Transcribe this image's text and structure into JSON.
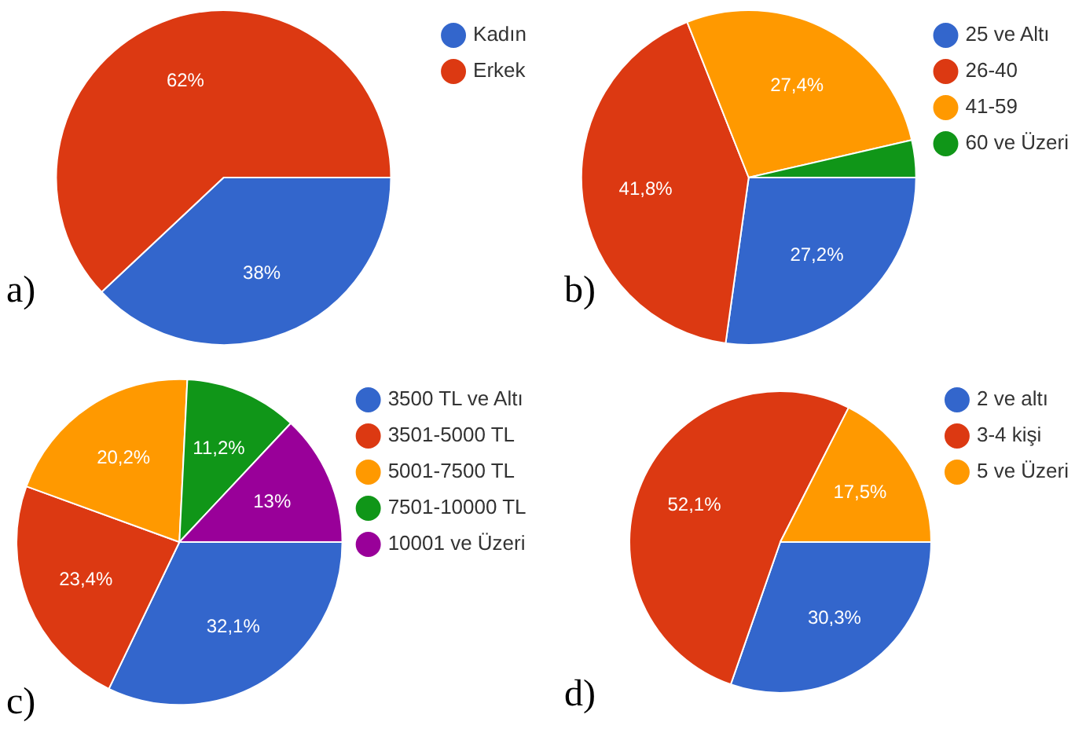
{
  "chart_data": [
    {
      "type": "pie",
      "categories": [
        "Kadın",
        "Erkek"
      ],
      "values": [
        38,
        62
      ],
      "colors": [
        "#3366cc",
        "#dc3912"
      ],
      "value_labels": [
        "38%",
        "62%"
      ],
      "legend": "top right",
      "annotations": [
        "a)"
      ]
    },
    {
      "type": "pie",
      "categories": [
        "25 ve Altı",
        "26-40",
        "41-59",
        "60 ve Üzeri"
      ],
      "values": [
        27.2,
        41.8,
        27.4,
        3.6
      ],
      "colors": [
        "#3366cc",
        "#dc3912",
        "#ff9900",
        "#109618"
      ],
      "value_labels": [
        "27,2%",
        "41,8%",
        "27,4%",
        null
      ],
      "legend": "top right",
      "annotations": [
        "b)"
      ]
    },
    {
      "type": "pie",
      "categories": [
        "3500 TL ve Altı",
        "3501-5000 TL",
        "5001-7500 TL",
        "7501-10000 TL",
        "10001 ve Üzeri"
      ],
      "values": [
        32.1,
        23.4,
        20.2,
        11.2,
        13
      ],
      "colors": [
        "#3366cc",
        "#dc3912",
        "#ff9900",
        "#109618",
        "#990099"
      ],
      "value_labels": [
        "32,1%",
        "23,4%",
        "20,2%",
        "11,2%",
        "13%"
      ],
      "legend": "top right",
      "annotations": [
        "c)"
      ]
    },
    {
      "type": "pie",
      "categories": [
        "2 ve altı",
        "3-4 kişi",
        "5 ve Üzeri"
      ],
      "values": [
        30.3,
        52.1,
        17.5
      ],
      "colors": [
        "#3366cc",
        "#dc3912",
        "#ff9900"
      ],
      "value_labels": [
        "30,3%",
        "52,1%",
        "17,5%"
      ],
      "legend": "top right",
      "annotations": [
        "d)"
      ]
    }
  ]
}
